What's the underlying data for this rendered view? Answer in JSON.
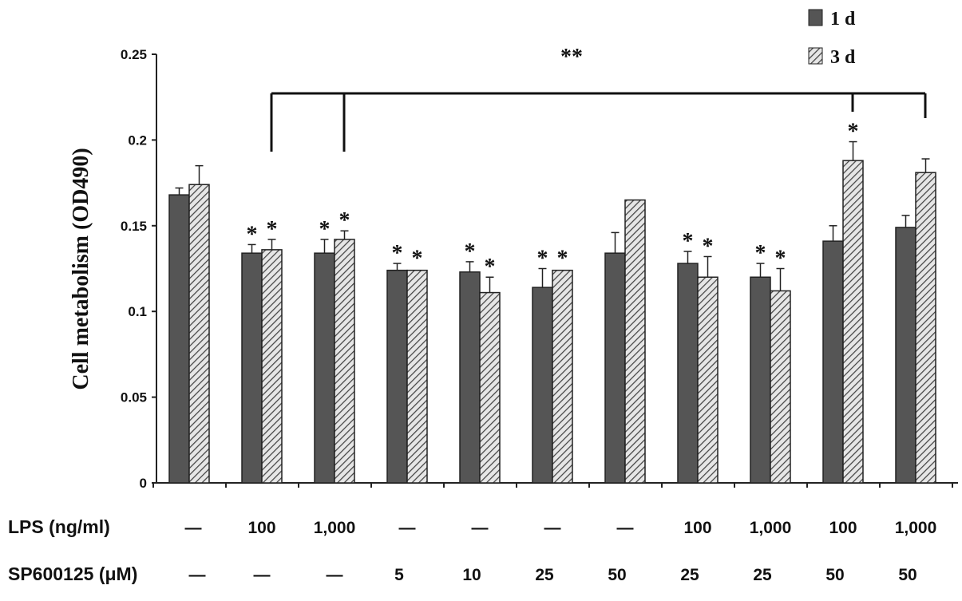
{
  "chart_data": {
    "type": "bar",
    "ylabel": "Cell metabolism (OD490)",
    "ylim": [
      0,
      0.25
    ],
    "yticks": [
      "0",
      "0.05",
      "0.1",
      "0.15",
      "0.2",
      "0.25"
    ],
    "legend": {
      "position": "top-right",
      "entries": [
        "1 d",
        "3 d"
      ]
    },
    "row_labels": {
      "lps": "LPS (ng/ml)",
      "sp": "SP600125 (μM)"
    },
    "lps": [
      "—",
      "100",
      "1,000",
      "—",
      "—",
      "—",
      "—",
      "100",
      "1,000",
      "100",
      "1,000"
    ],
    "sp": [
      "—",
      "—",
      "—",
      "5",
      "10",
      "25",
      "50",
      "25",
      "25",
      "50",
      "50"
    ],
    "series": [
      {
        "name": "1 d",
        "values": [
          0.168,
          0.134,
          0.134,
          0.124,
          0.123,
          0.114,
          0.134,
          0.128,
          0.12,
          0.141,
          0.149
        ],
        "errors": [
          0.004,
          0.005,
          0.008,
          0.004,
          0.006,
          0.011,
          0.012,
          0.007,
          0.008,
          0.009,
          0.007
        ],
        "significant": [
          false,
          true,
          true,
          true,
          true,
          true,
          false,
          true,
          true,
          false,
          false
        ]
      },
      {
        "name": "3 d",
        "values": [
          0.174,
          0.136,
          0.142,
          0.124,
          0.111,
          0.124,
          0.165,
          0.12,
          0.112,
          0.188,
          0.181
        ],
        "errors": [
          0.011,
          0.006,
          0.005,
          0.001,
          0.009,
          0.001,
          0.0,
          0.012,
          0.013,
          0.011,
          0.008
        ],
        "significant": [
          false,
          true,
          true,
          true,
          true,
          true,
          false,
          true,
          true,
          true,
          false
        ]
      }
    ],
    "annotation": "**",
    "significance_marker": "*"
  }
}
